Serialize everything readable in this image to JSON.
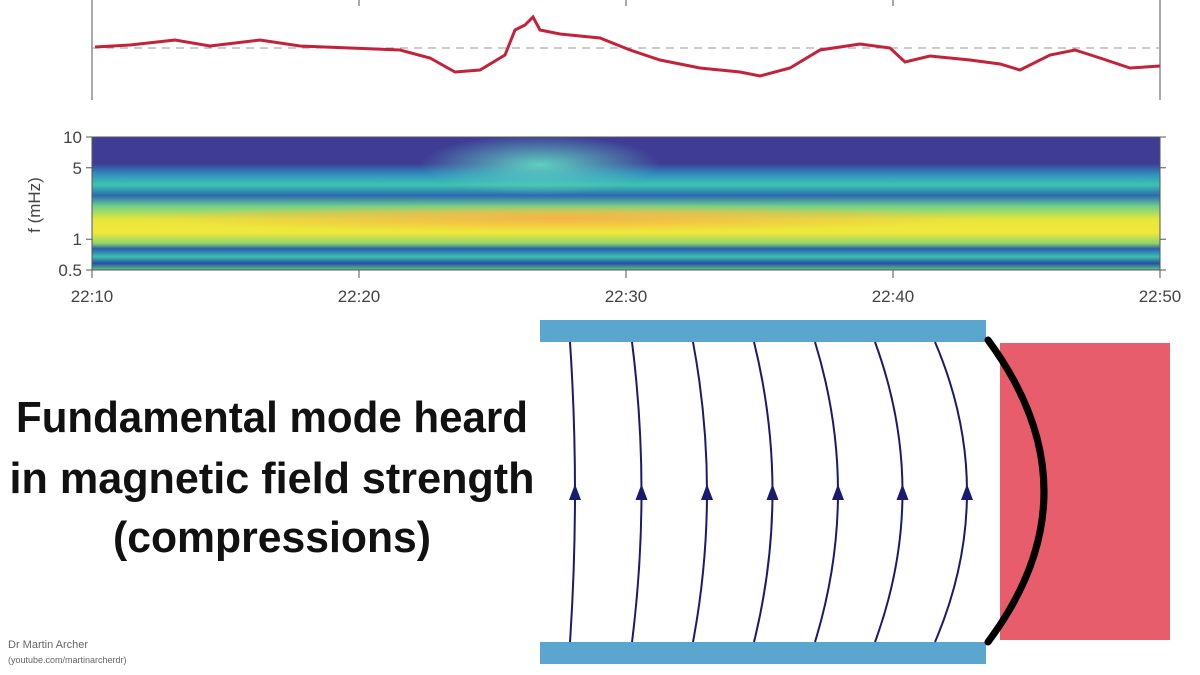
{
  "plot": {
    "time_ticks": [
      "22:10",
      "22:20",
      "22:30",
      "22:40",
      "22:50"
    ],
    "freq_axis": {
      "label": "f (mHz)",
      "ticks": [
        0.5,
        1,
        5,
        10
      ],
      "lim": [
        0.5,
        10
      ],
      "log": true
    }
  },
  "caption": {
    "lines": [
      "Fundamental mode heard",
      "in magnetic field strength",
      "(compressions)"
    ]
  },
  "credit": {
    "name": "Dr Martin Archer",
    "url": "(youtube.com/martinarcherdr)"
  }
}
